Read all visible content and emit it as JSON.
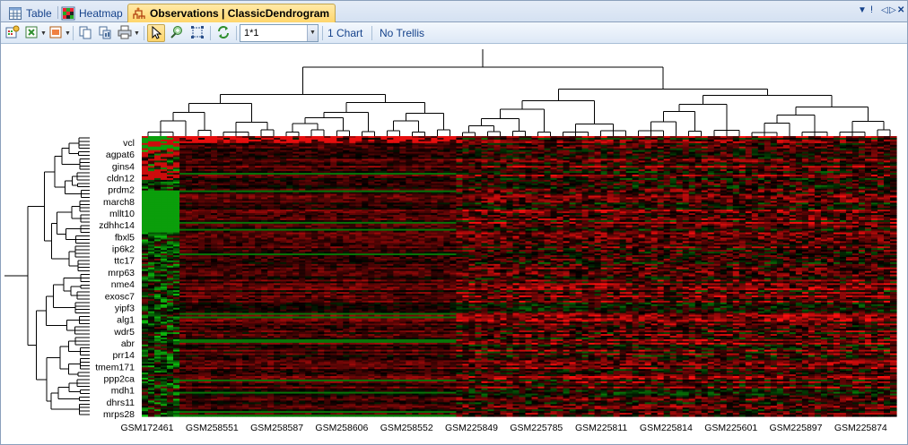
{
  "tabs": [
    {
      "label": "Table",
      "icon": "table-icon"
    },
    {
      "label": "Heatmap",
      "icon": "heatmap-icon"
    },
    {
      "label": "Observations | ClassicDendrogram",
      "icon": "dendrogram-icon",
      "active": true
    }
  ],
  "window_controls": {
    "menu": "▼",
    "pin": "ⵑ",
    "prev": "◁",
    "next": "▷",
    "close": "✕"
  },
  "toolbar": {
    "zoom_value": "1*1",
    "charts_label": "1 Chart",
    "trellis_label": "No Trellis"
  },
  "colors": {
    "high": "#ff2020",
    "mid": "#000000",
    "low": "#20d020"
  },
  "chart_data": {
    "type": "heatmap",
    "row_labels": [
      "vcl",
      "agpat6",
      "gins4",
      "cldn12",
      "prdm2",
      "march8",
      "mllt10",
      "zdhhc14",
      "fbxl5",
      "ip6k2",
      "ttc17",
      "mrp63",
      "nme4",
      "exosc7",
      "yipf3",
      "alg1",
      "wdr5",
      "abr",
      "prr14",
      "tmem171",
      "ppp2ca",
      "mdh1",
      "dhrs11",
      "mrps28"
    ],
    "column_labels": [
      "GSM172461",
      "GSM258551",
      "GSM258587",
      "GSM258606",
      "GSM258552",
      "GSM225849",
      "GSM225785",
      "GSM225811",
      "GSM225814",
      "GSM225601",
      "GSM225897",
      "GSM225874"
    ],
    "grid": false
  }
}
